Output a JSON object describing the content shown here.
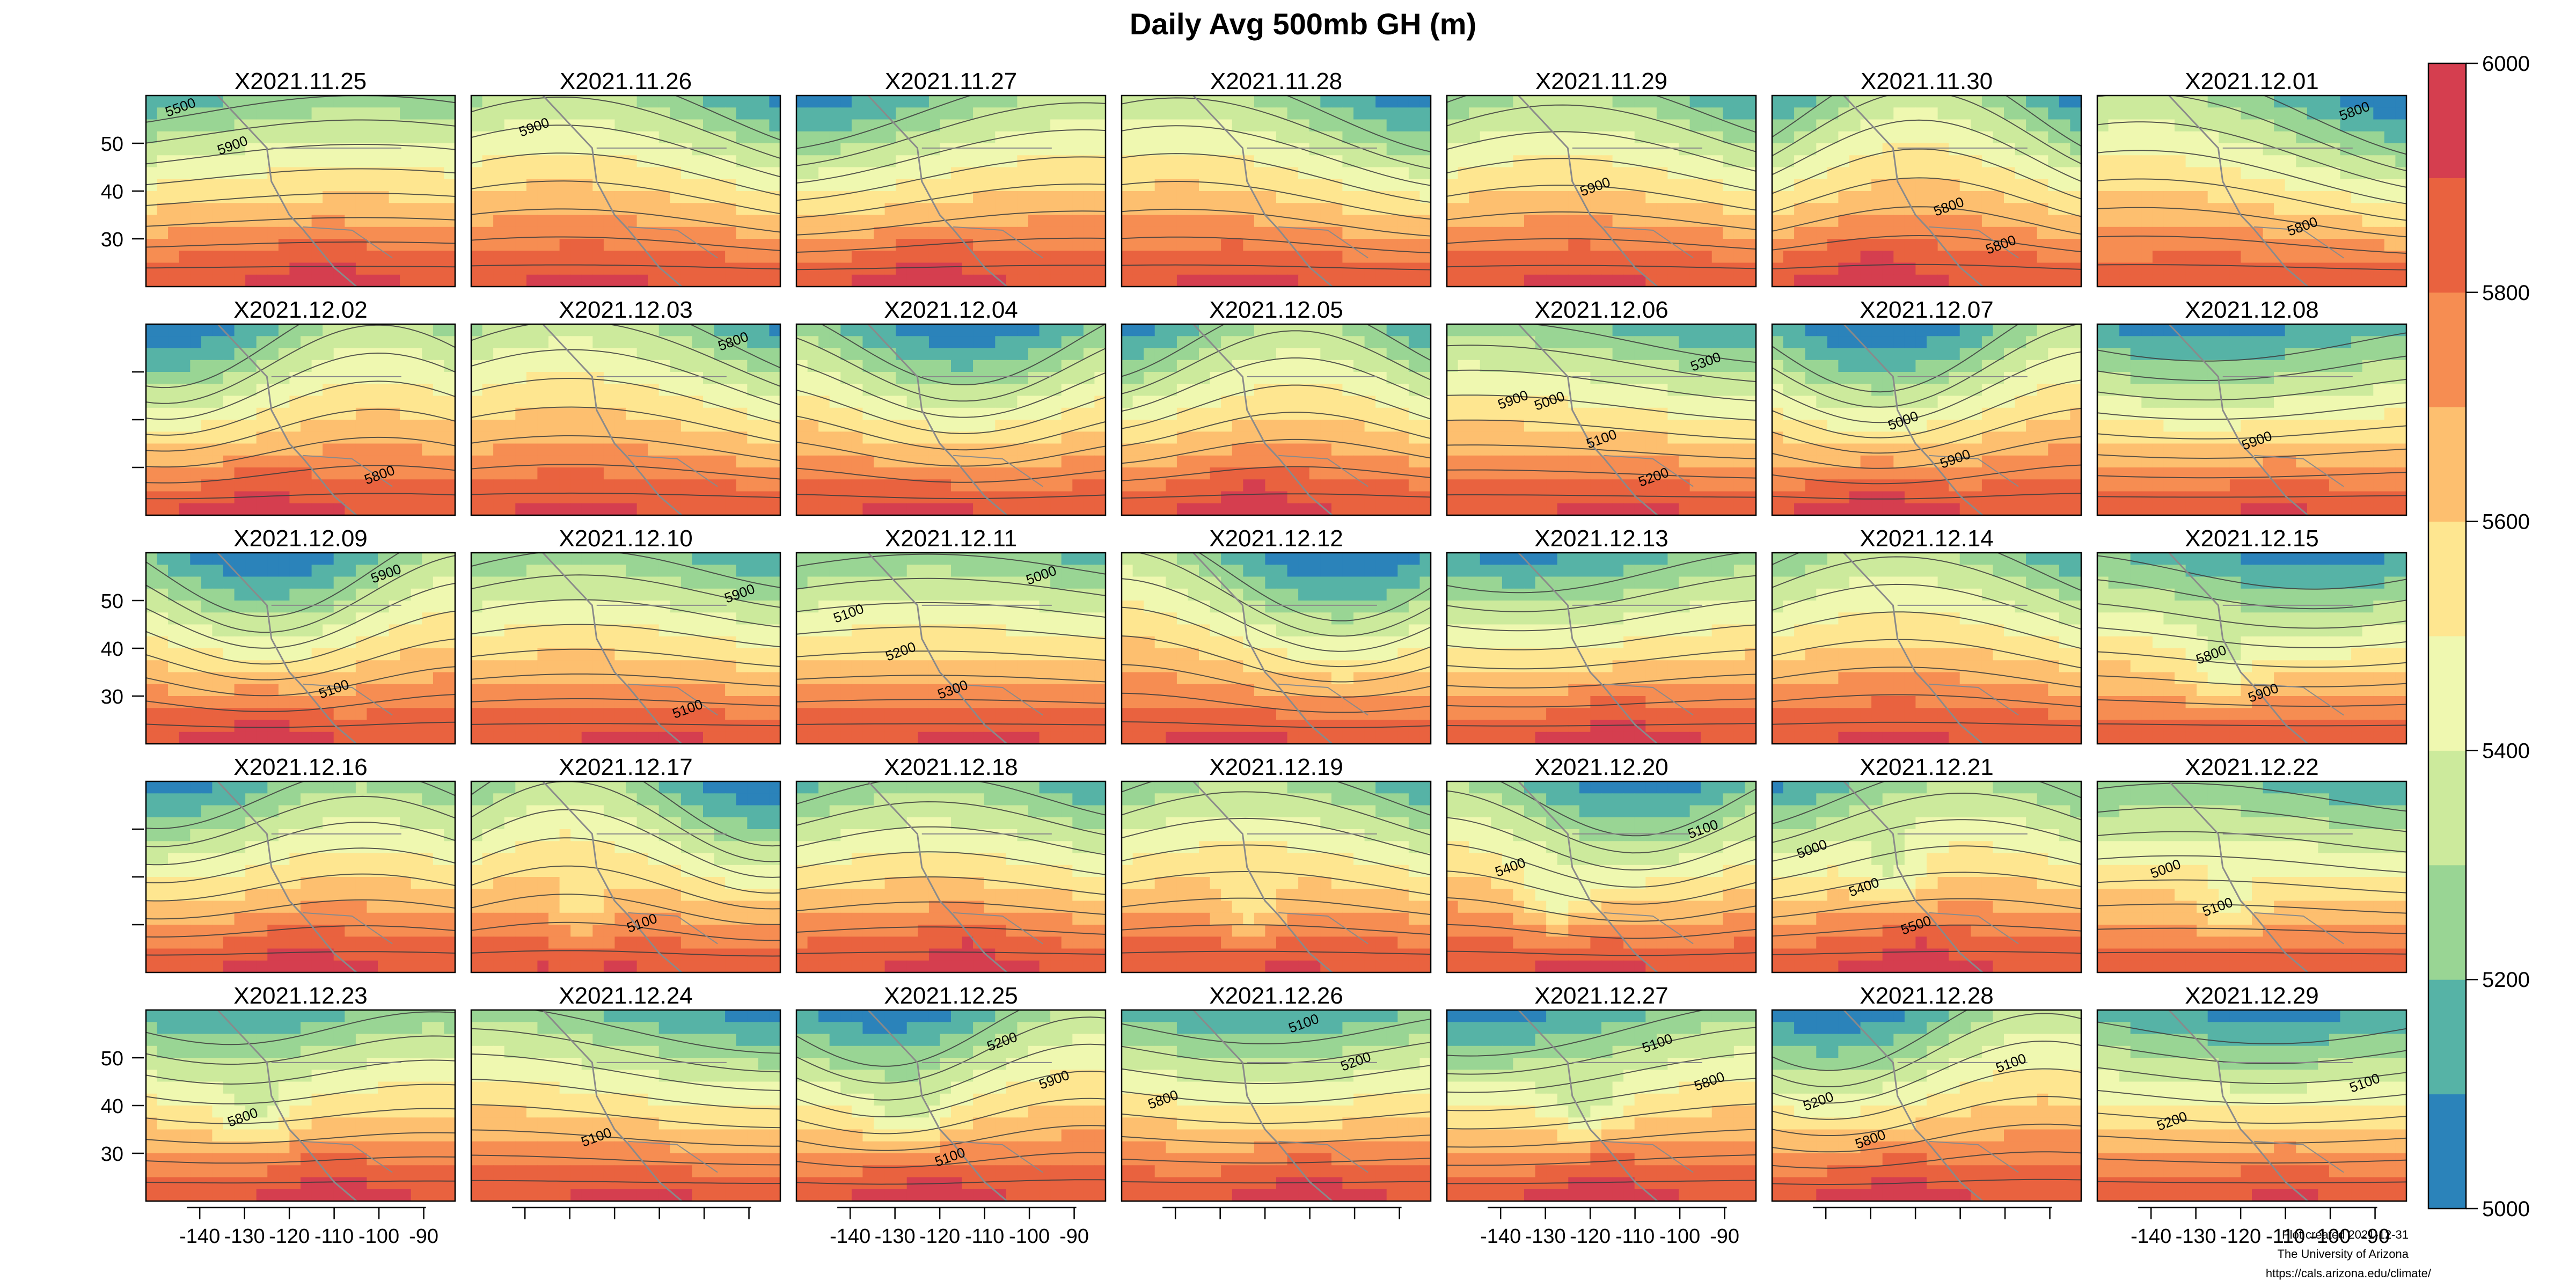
{
  "chart_data": {
    "type": "heatmap",
    "title": "Daily Avg 500mb GH (m)",
    "xlabel": "",
    "ylabel": "",
    "grid": false,
    "xlim": [
      -152,
      -83
    ],
    "ylim": [
      20,
      60
    ],
    "x_ticks": [
      -140,
      -130,
      -120,
      -110,
      -100,
      -90
    ],
    "x_tick_labels": [
      "-140",
      "-130",
      "-120",
      "-110",
      "-100",
      "-90"
    ],
    "y_ticks": [
      30,
      40,
      50
    ],
    "y_tick_labels": [
      "30",
      "40",
      "50"
    ],
    "colorbar": {
      "placement": "right",
      "range": [
        5000,
        6000
      ],
      "tick_values": [
        5000,
        5200,
        5400,
        5600,
        5800,
        6000
      ],
      "tick_labels": [
        "5000",
        "5200",
        "5400",
        "5600",
        "5800",
        "6000"
      ],
      "level_colors": [
        "#2b83ba",
        "#56b3a6",
        "#99d594",
        "#ccea9c",
        "#eff8b0",
        "#fee690",
        "#fdbf6f",
        "#f68d52",
        "#e9623f",
        "#d53e4f"
      ]
    },
    "panels": [
      {
        "date": "X2021.11.25",
        "contour_labels": [
          "5500",
          "5900"
        ]
      },
      {
        "date": "X2021.11.26",
        "contour_labels": [
          "5900"
        ]
      },
      {
        "date": "X2021.11.27",
        "contour_labels": []
      },
      {
        "date": "X2021.11.28",
        "contour_labels": []
      },
      {
        "date": "X2021.11.29",
        "contour_labels": [
          "5900"
        ]
      },
      {
        "date": "X2021.11.30",
        "contour_labels": [
          "5800",
          "5800"
        ]
      },
      {
        "date": "X2021.12.01",
        "contour_labels": [
          "5800",
          "5800"
        ]
      },
      {
        "date": "X2021.12.02",
        "contour_labels": [
          "5800"
        ]
      },
      {
        "date": "X2021.12.03",
        "contour_labels": [
          "5800"
        ]
      },
      {
        "date": "X2021.12.04",
        "contour_labels": []
      },
      {
        "date": "X2021.12.05",
        "contour_labels": []
      },
      {
        "date": "X2021.12.06",
        "contour_labels": [
          "5000",
          "5100",
          "5200",
          "5300",
          "5900"
        ]
      },
      {
        "date": "X2021.12.07",
        "contour_labels": [
          "5000",
          "5900"
        ]
      },
      {
        "date": "X2021.12.08",
        "contour_labels": [
          "5900"
        ]
      },
      {
        "date": "X2021.12.09",
        "contour_labels": [
          "5100",
          "5900"
        ]
      },
      {
        "date": "X2021.12.10",
        "contour_labels": [
          "5100",
          "5900"
        ]
      },
      {
        "date": "X2021.12.11",
        "contour_labels": [
          "5000",
          "5100",
          "5200",
          "5300"
        ]
      },
      {
        "date": "X2021.12.12",
        "contour_labels": []
      },
      {
        "date": "X2021.12.13",
        "contour_labels": []
      },
      {
        "date": "X2021.12.14",
        "contour_labels": []
      },
      {
        "date": "X2021.12.15",
        "contour_labels": [
          "5800",
          "5900"
        ]
      },
      {
        "date": "X2021.12.16",
        "contour_labels": []
      },
      {
        "date": "X2021.12.17",
        "contour_labels": [
          "5100"
        ]
      },
      {
        "date": "X2021.12.18",
        "contour_labels": []
      },
      {
        "date": "X2021.12.19",
        "contour_labels": []
      },
      {
        "date": "X2021.12.20",
        "contour_labels": [
          "5100",
          "5400"
        ]
      },
      {
        "date": "X2021.12.21",
        "contour_labels": [
          "5000",
          "5400",
          "5500"
        ]
      },
      {
        "date": "X2021.12.22",
        "contour_labels": [
          "5000",
          "5100"
        ]
      },
      {
        "date": "X2021.12.23",
        "contour_labels": [
          "5800"
        ]
      },
      {
        "date": "X2021.12.24",
        "contour_labels": [
          "5100"
        ]
      },
      {
        "date": "X2021.12.25",
        "contour_labels": [
          "5100",
          "5200",
          "5900"
        ]
      },
      {
        "date": "X2021.12.26",
        "contour_labels": [
          "5100",
          "5200",
          "5800"
        ]
      },
      {
        "date": "X2021.12.27",
        "contour_labels": [
          "5100",
          "5800"
        ]
      },
      {
        "date": "X2021.12.28",
        "contour_labels": [
          "5100",
          "5200",
          "5800"
        ]
      },
      {
        "date": "X2021.12.29",
        "contour_labels": [
          "5100",
          "5200"
        ]
      }
    ]
  },
  "credits": {
    "line1": "Plot created 2021-12-31",
    "line2": "The University of Arizona",
    "line3": "https://cals.arizona.edu/climate/"
  }
}
